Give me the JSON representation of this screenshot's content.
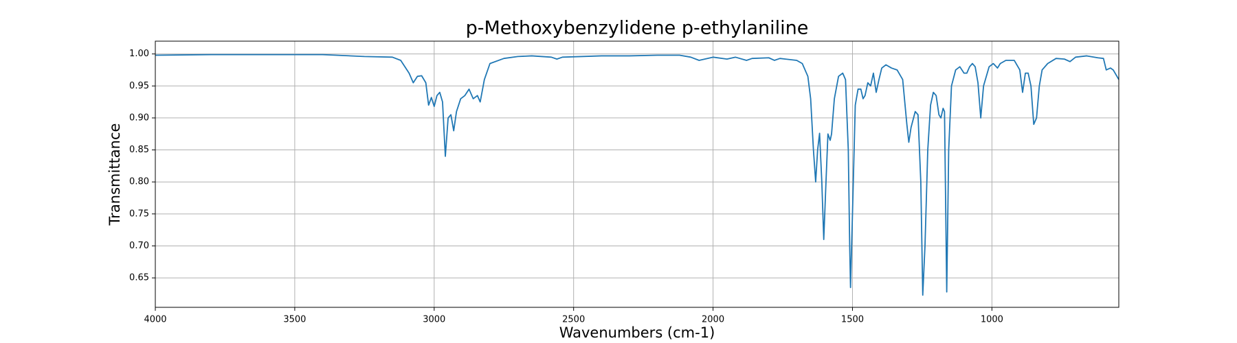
{
  "chart_data": {
    "type": "line",
    "title": "p-Methoxybenzylidene p-ethylaniline",
    "x_label": "Wavenumbers (cm-1)",
    "y_label": "Transmittance",
    "color": "#1f77b4",
    "grid": true,
    "xlim": [
      4000,
      545
    ],
    "ylim": [
      0.604,
      1.02
    ],
    "xticks": [
      4000,
      3500,
      3000,
      2500,
      2000,
      1500,
      1000
    ],
    "yticks": [
      0.65,
      {
        "value": 0.7,
        "label": "0.70"
      },
      0.75,
      {
        "value": 0.8,
        "label": "0.80"
      },
      0.85,
      {
        "value": 0.9,
        "label": "0.90"
      },
      0.95,
      {
        "value": 1,
        "label": "1.00"
      }
    ],
    "x": [
      4000,
      3800,
      3600,
      3400,
      3250,
      3150,
      3120,
      3090,
      3075,
      3060,
      3045,
      3030,
      3020,
      3010,
      3000,
      2990,
      2980,
      2970,
      2960,
      2950,
      2940,
      2930,
      2920,
      2905,
      2890,
      2875,
      2860,
      2845,
      2835,
      2820,
      2800,
      2750,
      2700,
      2650,
      2580,
      2560,
      2540,
      2400,
      2300,
      2200,
      2120,
      2080,
      2050,
      2000,
      1950,
      1920,
      1880,
      1860,
      1800,
      1780,
      1760,
      1700,
      1680,
      1660,
      1650,
      1640,
      1632,
      1625,
      1618,
      1610,
      1603,
      1595,
      1588,
      1580,
      1575,
      1565,
      1550,
      1535,
      1525,
      1515,
      1510,
      1507,
      1500,
      1490,
      1480,
      1470,
      1462,
      1455,
      1445,
      1435,
      1425,
      1415,
      1405,
      1395,
      1380,
      1360,
      1340,
      1320,
      1305,
      1298,
      1290,
      1275,
      1265,
      1255,
      1248,
      1240,
      1230,
      1220,
      1210,
      1200,
      1190,
      1183,
      1175,
      1170,
      1162,
      1155,
      1145,
      1130,
      1115,
      1100,
      1090,
      1080,
      1070,
      1060,
      1050,
      1040,
      1030,
      1020,
      1010,
      995,
      980,
      970,
      950,
      920,
      900,
      890,
      880,
      870,
      860,
      850,
      840,
      830,
      820,
      800,
      770,
      740,
      720,
      700,
      660,
      620,
      600,
      590,
      575,
      565,
      545
    ],
    "values": [
      0.998,
      0.999,
      0.999,
      0.999,
      0.996,
      0.995,
      0.99,
      0.97,
      0.955,
      0.965,
      0.966,
      0.955,
      0.92,
      0.932,
      0.918,
      0.935,
      0.94,
      0.925,
      0.84,
      0.9,
      0.905,
      0.88,
      0.91,
      0.93,
      0.935,
      0.945,
      0.93,
      0.935,
      0.925,
      0.96,
      0.985,
      0.993,
      0.996,
      0.997,
      0.995,
      0.992,
      0.995,
      0.997,
      0.997,
      0.998,
      0.998,
      0.995,
      0.99,
      0.995,
      0.992,
      0.995,
      0.99,
      0.993,
      0.994,
      0.99,
      0.993,
      0.99,
      0.985,
      0.965,
      0.93,
      0.85,
      0.8,
      0.85,
      0.876,
      0.8,
      0.71,
      0.8,
      0.875,
      0.865,
      0.875,
      0.93,
      0.965,
      0.97,
      0.96,
      0.85,
      0.7,
      0.635,
      0.75,
      0.92,
      0.945,
      0.945,
      0.93,
      0.935,
      0.955,
      0.95,
      0.97,
      0.94,
      0.96,
      0.978,
      0.983,
      0.978,
      0.975,
      0.96,
      0.89,
      0.862,
      0.885,
      0.91,
      0.905,
      0.8,
      0.623,
      0.7,
      0.85,
      0.92,
      0.94,
      0.935,
      0.905,
      0.9,
      0.915,
      0.91,
      0.628,
      0.85,
      0.95,
      0.975,
      0.98,
      0.97,
      0.97,
      0.98,
      0.985,
      0.98,
      0.955,
      0.9,
      0.95,
      0.965,
      0.98,
      0.985,
      0.978,
      0.985,
      0.99,
      0.99,
      0.975,
      0.94,
      0.97,
      0.97,
      0.95,
      0.89,
      0.9,
      0.95,
      0.975,
      0.985,
      0.993,
      0.992,
      0.988,
      0.995,
      0.997,
      0.994,
      0.993,
      0.975,
      0.978,
      0.975,
      0.96
    ]
  }
}
